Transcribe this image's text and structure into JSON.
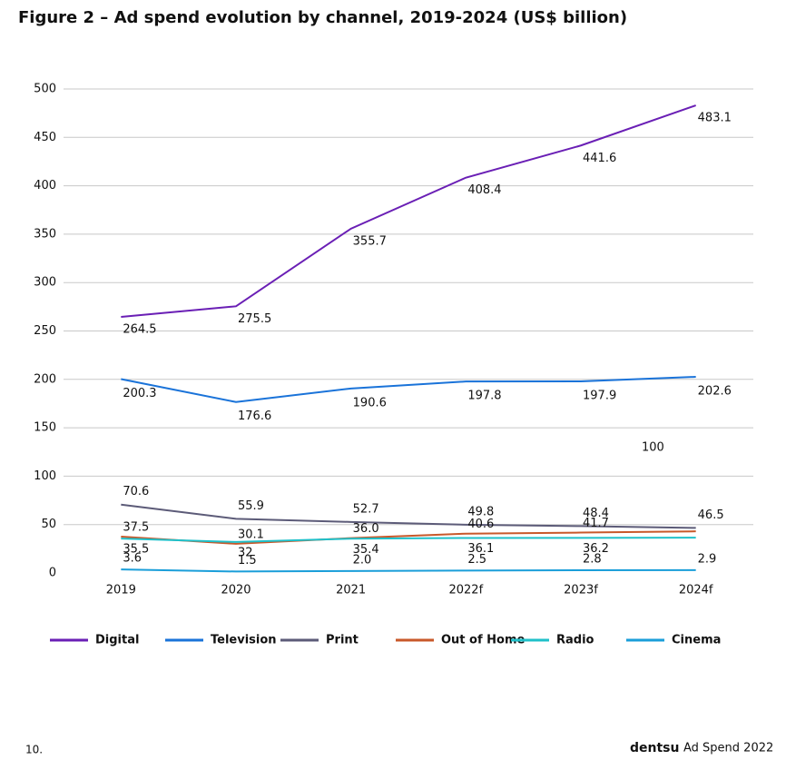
{
  "chart_data": {
    "type": "line",
    "title": "Figure 2 – Ad spend evolution by channel, 2019-2024 (US$ billion)",
    "categories": [
      "2019",
      "2020",
      "2021",
      "2022f",
      "2023f",
      "2024f"
    ],
    "series": [
      {
        "name": "Digital",
        "color": "#6a1fb5",
        "values": [
          264.5,
          275.5,
          355.7,
          408.4,
          441.6,
          483.1
        ]
      },
      {
        "name": "Television",
        "color": "#1a73d9",
        "values": [
          200.3,
          176.6,
          190.6,
          197.8,
          197.9,
          202.6
        ]
      },
      {
        "name": "Print",
        "color": "#5c5b78",
        "values": [
          70.6,
          55.9,
          52.7,
          49.8,
          48.4,
          46.5
        ]
      },
      {
        "name": "Out of Home",
        "color": "#c8582a",
        "values": [
          37.5,
          30.1,
          36.0,
          40.6,
          41.7,
          43
        ],
        "value_labels": [
          "37.5",
          "30.1",
          "36.0",
          "40.6",
          "41.7",
          null
        ]
      },
      {
        "name": "Radio",
        "color": "#1fc0c9",
        "values": [
          35.5,
          32,
          35.4,
          36.1,
          36.2,
          36.5
        ],
        "value_labels": [
          "35.5",
          "32",
          "35.4",
          "36.1",
          "36.2",
          null
        ]
      },
      {
        "name": "Cinema",
        "color": "#1a9ed9",
        "values": [
          3.6,
          1.5,
          2.0,
          2.5,
          2.8,
          2.9
        ],
        "value_labels": [
          "3.6",
          "1.5",
          "2.0",
          "2.5",
          "2.8",
          "2.9"
        ]
      }
    ],
    "ylim": [
      0,
      500
    ],
    "yticks": [
      0,
      50,
      100,
      150,
      200,
      250,
      300,
      350,
      400,
      450,
      500
    ],
    "grid": true,
    "annotations": [
      "100"
    ],
    "footer": {
      "page": "10.",
      "brand": "dentsu",
      "publication": "Ad Spend 2022"
    }
  }
}
